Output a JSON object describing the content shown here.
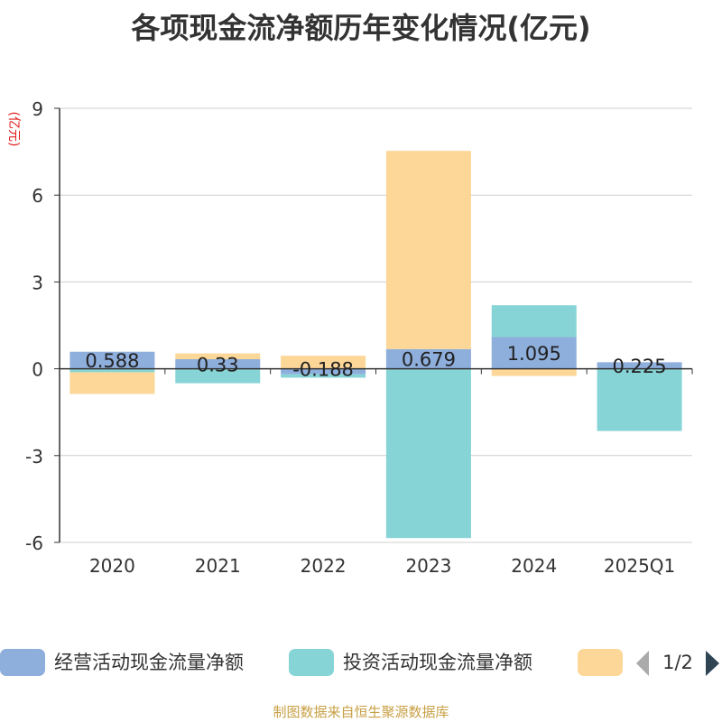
{
  "chart_data": {
    "type": "bar",
    "stacked": true,
    "title": "各项现金流净额历年变化情况(亿元)",
    "ylabel": "(亿元)",
    "categories": [
      "2020",
      "2021",
      "2022",
      "2023",
      "2024",
      "2025Q1"
    ],
    "ylim": [
      -6,
      9
    ],
    "yticks": [
      9,
      6,
      3,
      0,
      -3,
      -6
    ],
    "grid": true,
    "series": [
      {
        "name": "经营活动现金流量净额",
        "color": "#8eaedc",
        "values": [
          0.588,
          0.33,
          -0.188,
          0.679,
          1.095,
          0.225
        ],
        "labels": [
          "0.588",
          "0.33",
          "-0.188",
          "0.679",
          "1.095",
          "0.225"
        ]
      },
      {
        "name": "投资活动现金流量净额",
        "color": "#87d4d7",
        "values": [
          -0.12,
          -0.5,
          -0.12,
          -5.85,
          1.1,
          -2.15
        ]
      },
      {
        "name": "",
        "color": "#fdd797",
        "values": [
          -0.75,
          0.2,
          0.45,
          6.85,
          -0.25,
          0
        ]
      }
    ],
    "legend": {
      "position": "bottom",
      "page": "1/2"
    }
  },
  "footer": "制图数据来自恒生聚源数据库"
}
